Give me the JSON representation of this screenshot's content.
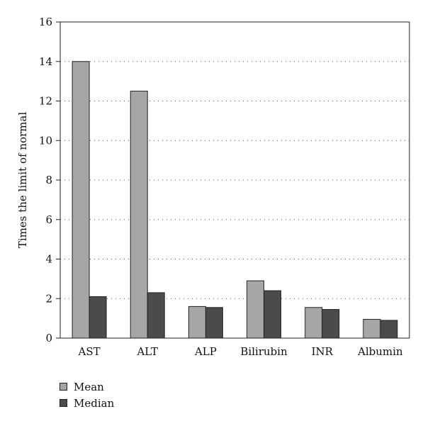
{
  "chart_data": {
    "type": "bar",
    "categories": [
      "AST",
      "ALT",
      "ALP",
      "Bilirubin",
      "INR",
      "Albumin"
    ],
    "series": [
      {
        "name": "Mean",
        "values": [
          14.0,
          12.5,
          1.6,
          2.9,
          1.55,
          0.95
        ]
      },
      {
        "name": "Median",
        "values": [
          2.1,
          2.3,
          1.55,
          2.4,
          1.45,
          0.9
        ]
      }
    ],
    "ylabel": "Times the limit of normal",
    "ylim": [
      0,
      16
    ],
    "yticks": [
      0,
      2,
      4,
      6,
      8,
      10,
      12,
      14,
      16
    ],
    "grid": "horizontal-dotted",
    "legend_position": "bottom-left"
  },
  "colors": {
    "Mean": "#a6a6a6",
    "Median": "#4b4b4b"
  }
}
